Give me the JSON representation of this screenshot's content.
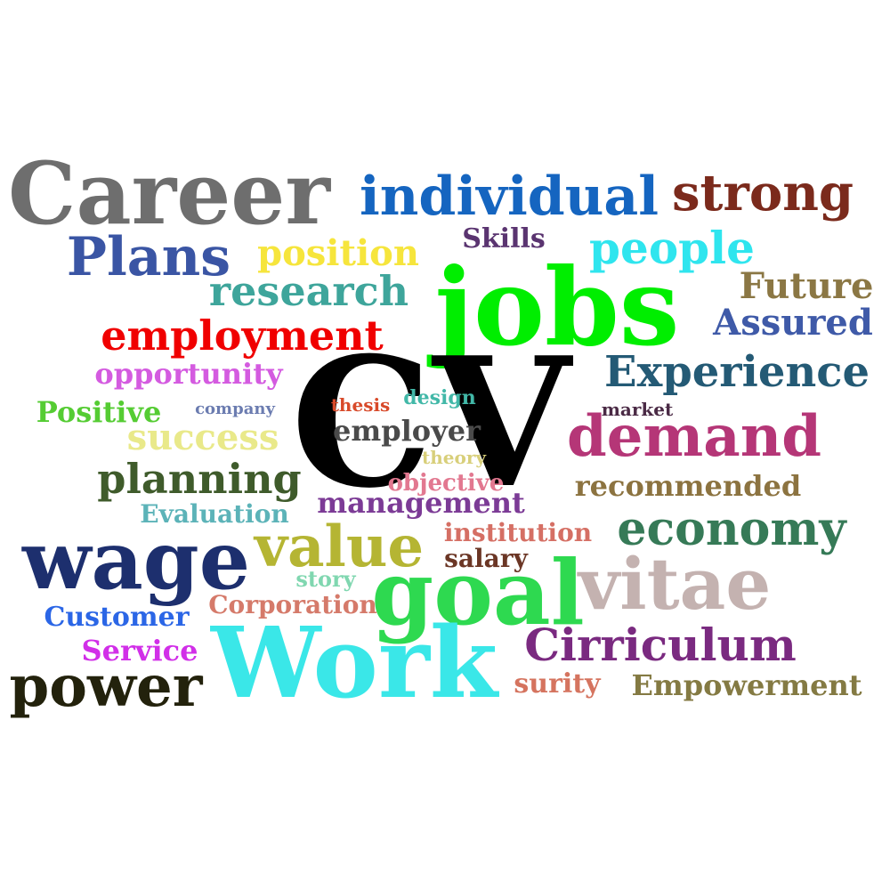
{
  "words": [
    {
      "text": "Career",
      "color": "#6e6e6e"
    },
    {
      "text": "individual",
      "color": "#1565c0"
    },
    {
      "text": "strong",
      "color": "#7b2a1c"
    },
    {
      "text": "Plans",
      "color": "#3a55a4"
    },
    {
      "text": "position",
      "color": "#f6e53c"
    },
    {
      "text": "Skills",
      "color": "#5a3470"
    },
    {
      "text": "people",
      "color": "#2fe5ee"
    },
    {
      "text": "research",
      "color": "#3ea59b"
    },
    {
      "text": "jobs",
      "color": "#00ee00"
    },
    {
      "text": "Future",
      "color": "#8b7744"
    },
    {
      "text": "Assured",
      "color": "#3f5aa8"
    },
    {
      "text": "employment",
      "color": "#f00000"
    },
    {
      "text": "opportunity",
      "color": "#d45be0"
    },
    {
      "text": "CV",
      "color": "#000000"
    },
    {
      "text": "Experience",
      "color": "#245a75"
    },
    {
      "text": "Positive",
      "color": "#55cc33"
    },
    {
      "text": "company",
      "color": "#6b7cb0"
    },
    {
      "text": "thesis",
      "color": "#d84a2a"
    },
    {
      "text": "design",
      "color": "#42b8a8"
    },
    {
      "text": "market",
      "color": "#4a2a45"
    },
    {
      "text": "employer",
      "color": "#4a4a4a"
    },
    {
      "text": "success",
      "color": "#e9e98a"
    },
    {
      "text": "demand",
      "color": "#b53677"
    },
    {
      "text": "theory",
      "color": "#d8cf7a"
    },
    {
      "text": "planning",
      "color": "#3f5b2b"
    },
    {
      "text": "objective",
      "color": "#e27890"
    },
    {
      "text": "recommended",
      "color": "#8c7340"
    },
    {
      "text": "Evaluation",
      "color": "#5cb3b8"
    },
    {
      "text": "management",
      "color": "#7c3b96"
    },
    {
      "text": "economy",
      "color": "#367a57"
    },
    {
      "text": "wage",
      "color": "#1d2f6e"
    },
    {
      "text": "value",
      "color": "#b5b533"
    },
    {
      "text": "institution",
      "color": "#d56f64"
    },
    {
      "text": "salary",
      "color": "#6b3625"
    },
    {
      "text": "story",
      "color": "#80d7b0"
    },
    {
      "text": "goal",
      "color": "#2ed950"
    },
    {
      "text": "vitae",
      "color": "#c4b2b0"
    },
    {
      "text": "Customer",
      "color": "#2b66e6"
    },
    {
      "text": "Corporation",
      "color": "#d57a6a"
    },
    {
      "text": "Service",
      "color": "#d12fe8"
    },
    {
      "text": "Work",
      "color": "#3ae7e8"
    },
    {
      "text": "Cirriculum",
      "color": "#7a2a80"
    },
    {
      "text": "power",
      "color": "#23220c"
    },
    {
      "text": "surity",
      "color": "#d5745f"
    },
    {
      "text": "Empowerment",
      "color": "#847a43"
    }
  ]
}
